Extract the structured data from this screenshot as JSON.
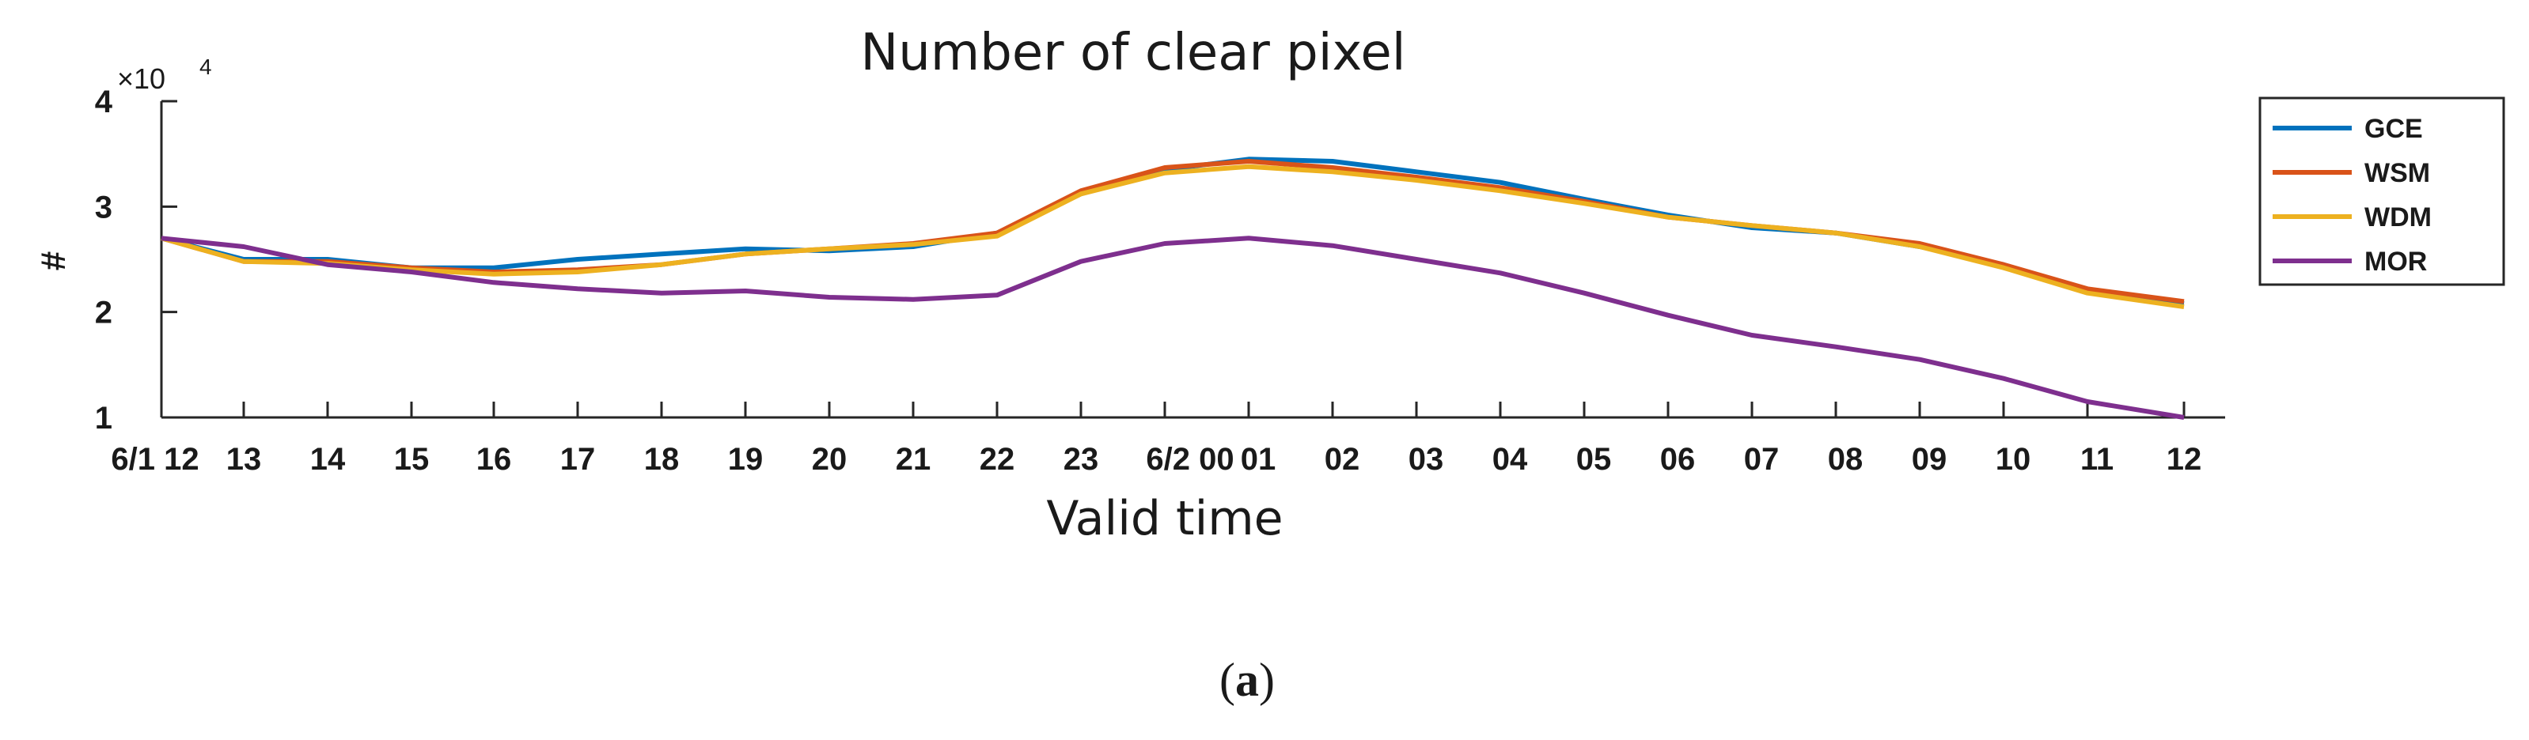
{
  "chart_data": {
    "type": "line",
    "title": "Number of clear pixel",
    "xlabel": "Valid time",
    "ylabel": "#",
    "y_exponent_base": "×10",
    "y_exponent_power": "4",
    "panel_label": "a",
    "ylim": [
      1,
      4
    ],
    "yticks": [
      "1",
      "2",
      "3",
      "4"
    ],
    "xticks": [
      "6/1 12",
      "13",
      "14",
      "15",
      "16",
      "17",
      "18",
      "19",
      "20",
      "21",
      "22",
      "23",
      "6/2 00",
      "01",
      "02",
      "03",
      "04",
      "05",
      "06",
      "07",
      "08",
      "09",
      "10",
      "11",
      "12"
    ],
    "legend_position": "outside-right",
    "grid": false,
    "series": [
      {
        "name": "GCE",
        "color": "#0072BD",
        "values": [
          2.7,
          2.5,
          2.5,
          2.42,
          2.42,
          2.5,
          2.55,
          2.6,
          2.58,
          2.62,
          2.75,
          3.12,
          3.35,
          3.45,
          3.43,
          3.33,
          3.23,
          3.07,
          2.92,
          2.8,
          2.75,
          2.62,
          2.45,
          2.2,
          2.08
        ]
      },
      {
        "name": "WSM",
        "color": "#D95319",
        "values": [
          2.7,
          2.48,
          2.48,
          2.42,
          2.38,
          2.4,
          2.45,
          2.55,
          2.6,
          2.65,
          2.75,
          3.15,
          3.37,
          3.43,
          3.37,
          3.28,
          3.18,
          3.05,
          2.9,
          2.82,
          2.75,
          2.65,
          2.45,
          2.22,
          2.1
        ]
      },
      {
        "name": "WDM",
        "color": "#EDB120",
        "values": [
          2.7,
          2.48,
          2.46,
          2.4,
          2.36,
          2.38,
          2.45,
          2.55,
          2.6,
          2.64,
          2.72,
          3.12,
          3.32,
          3.38,
          3.33,
          3.25,
          3.15,
          3.03,
          2.9,
          2.82,
          2.75,
          2.62,
          2.42,
          2.18,
          2.05
        ]
      },
      {
        "name": "MOR",
        "color": "#7E2F8E",
        "values": [
          2.7,
          2.62,
          2.45,
          2.38,
          2.28,
          2.22,
          2.18,
          2.2,
          2.14,
          2.12,
          2.16,
          2.48,
          2.65,
          2.7,
          2.63,
          2.5,
          2.37,
          2.18,
          1.97,
          1.78,
          1.67,
          1.55,
          1.37,
          1.15,
          1.0
        ]
      }
    ]
  }
}
